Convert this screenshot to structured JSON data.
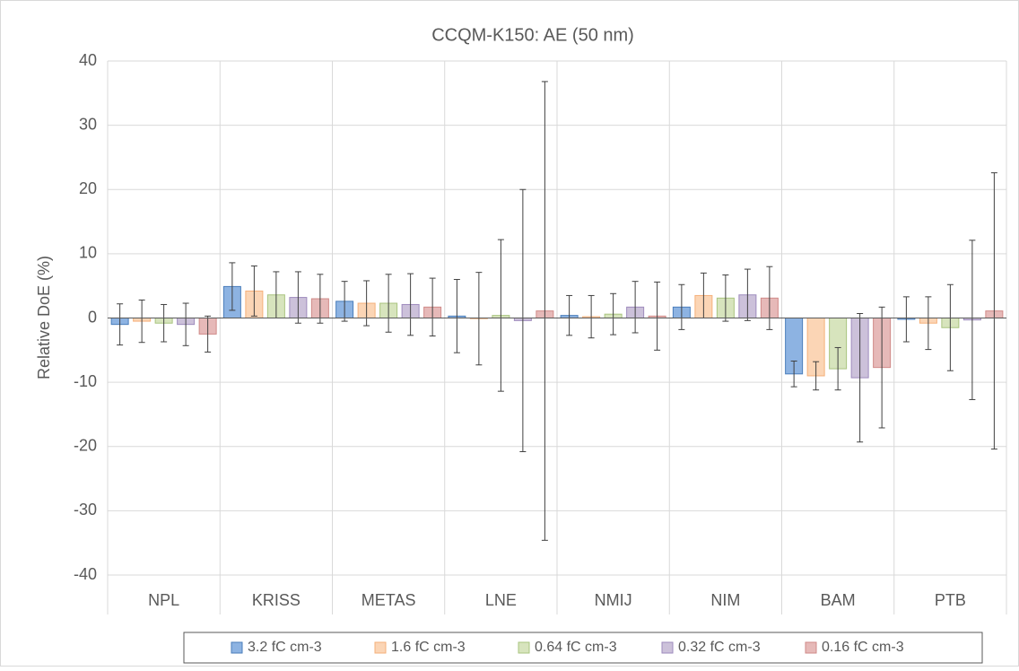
{
  "chart_data": {
    "type": "bar",
    "title": "CCQM-K150: AE (50 nm)",
    "ylabel": "Relative DoE (%)",
    "categories": [
      "NPL",
      "KRISS",
      "METAS",
      "LNE",
      "NMIJ",
      "NIM",
      "BAM",
      "PTB"
    ],
    "series": [
      {
        "name": "3.2 fC cm-3",
        "color": "#8db3e2",
        "edgecolor": "#4a7ebb",
        "values": [
          -1.0,
          4.9,
          2.6,
          0.3,
          0.4,
          1.7,
          -8.7,
          -0.2
        ],
        "errors": [
          3.2,
          3.7,
          3.1,
          5.7,
          3.1,
          3.5,
          2.0,
          3.5
        ]
      },
      {
        "name": "1.6 fC cm-3",
        "color": "#fbd5b5",
        "edgecolor": "#f5b07a",
        "values": [
          -0.5,
          4.2,
          2.3,
          -0.1,
          0.2,
          3.5,
          -9.0,
          -0.8
        ],
        "errors": [
          3.3,
          3.9,
          3.5,
          7.2,
          3.3,
          3.5,
          2.2,
          4.1
        ]
      },
      {
        "name": "0.64 fC cm-3",
        "color": "#d7e4bd",
        "edgecolor": "#a9c47f",
        "values": [
          -0.8,
          3.6,
          2.3,
          0.4,
          0.6,
          3.1,
          -7.9,
          -1.5
        ],
        "errors": [
          2.9,
          3.6,
          4.5,
          11.8,
          3.2,
          3.6,
          3.3,
          6.7
        ]
      },
      {
        "name": "0.32 fC cm-3",
        "color": "#ccc1da",
        "edgecolor": "#9e8bbd",
        "values": [
          -1.0,
          3.2,
          2.1,
          -0.4,
          1.7,
          3.6,
          -9.3,
          -0.3
        ],
        "errors": [
          3.3,
          4.0,
          4.8,
          20.4,
          4.0,
          4.0,
          10.0,
          12.4
        ]
      },
      {
        "name": "0.16 fC cm-3",
        "color": "#e6b9b8",
        "edgecolor": "#d08a88",
        "values": [
          -2.5,
          3.0,
          1.7,
          1.1,
          0.3,
          3.1,
          -7.7,
          1.1
        ],
        "errors": [
          2.8,
          3.8,
          4.5,
          35.7,
          5.3,
          4.9,
          9.4,
          21.5
        ]
      }
    ],
    "ylim": [
      -40,
      40
    ],
    "yticks": [
      -40,
      -30,
      -20,
      -10,
      0,
      10,
      20,
      30,
      40
    ],
    "grid": true,
    "legend": "bottom"
  }
}
